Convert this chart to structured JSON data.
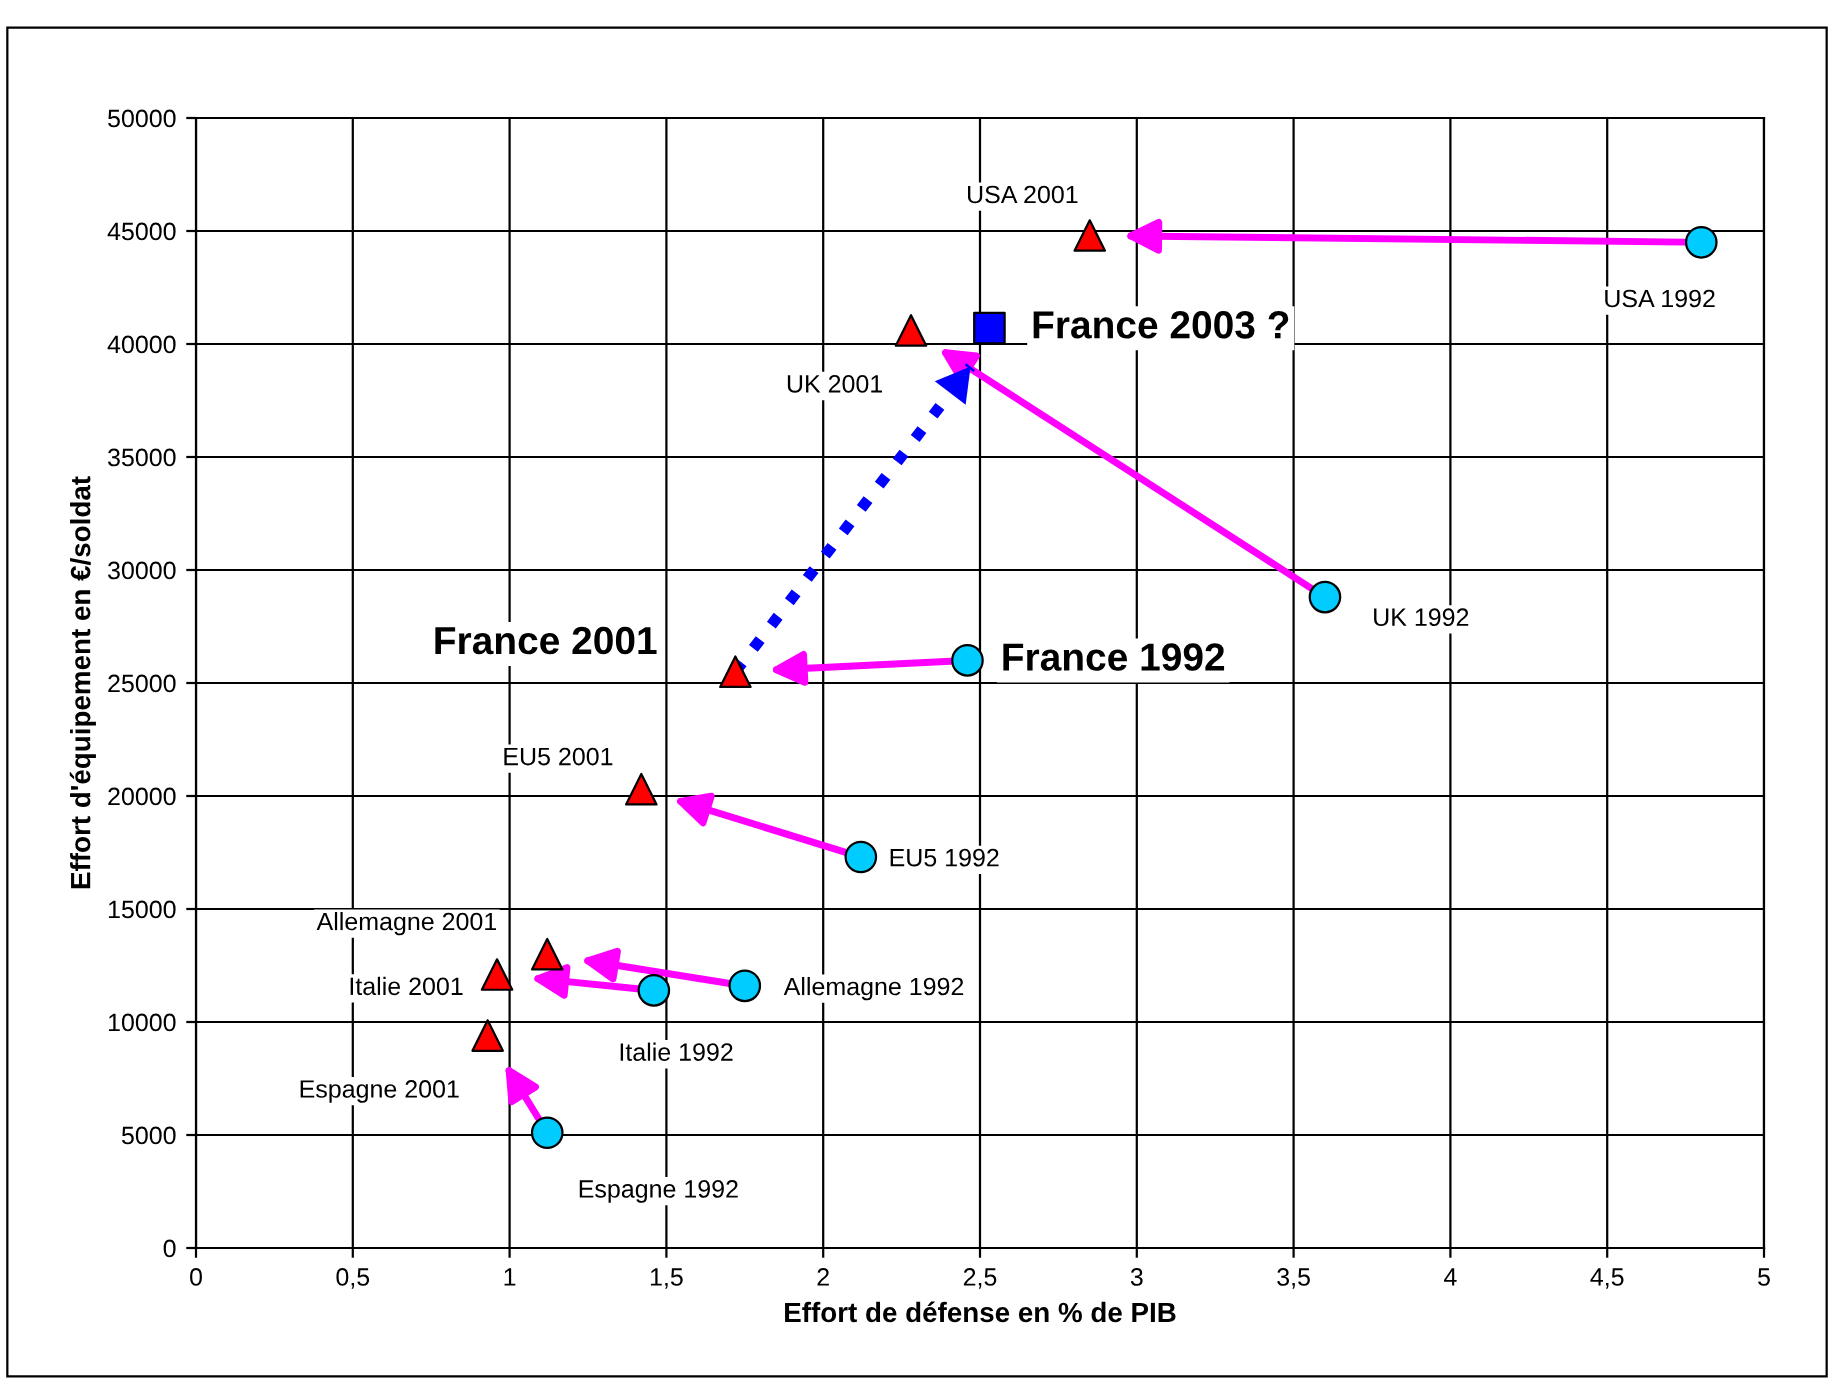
{
  "chart_data": {
    "type": "scatter",
    "xlabel": "Effort de défense en % de PIB",
    "ylabel": "Effort d'équipement en €/soldat",
    "xlim": [
      0,
      5
    ],
    "ylim": [
      0,
      50000
    ],
    "xticks": [
      0,
      {
        "value": 0.5,
        "label": "0,5"
      },
      1,
      {
        "value": 1.5,
        "label": "1,5"
      },
      2,
      {
        "value": 2.5,
        "label": "2,5"
      },
      3,
      {
        "value": 3.5,
        "label": "3,5"
      },
      4,
      {
        "value": 4.5,
        "label": "4,5"
      },
      5
    ],
    "yticks": [
      0,
      5000,
      10000,
      15000,
      20000,
      25000,
      30000,
      35000,
      40000,
      45000,
      50000
    ],
    "grid": true,
    "series": [
      {
        "type": "scatter",
        "color": "#00ccff",
        "marker": "circle",
        "x": [
          4.8,
          3.6,
          2.46,
          2.12,
          1.75,
          1.46,
          1.12
        ],
        "values": [
          44500,
          28800,
          26000,
          17300,
          11600,
          11400,
          5100
        ]
      },
      {
        "type": "scatter",
        "color": "#ff0000",
        "marker": "triangle",
        "x": [
          2.85,
          2.28,
          1.72,
          1.42,
          1.12,
          0.96,
          0.93
        ],
        "values": [
          44800,
          40600,
          25500,
          20300,
          13000,
          12100,
          9400
        ]
      },
      {
        "type": "scatter",
        "color": "#0000ff",
        "marker": "square",
        "x": [
          2.53
        ],
        "values": [
          40700
        ]
      },
      {
        "type": "line",
        "color": "#0000ff",
        "line_style": "dotted",
        "marker": "none",
        "x": [
          1.72,
          2.47
        ],
        "values": [
          25500,
          39000
        ]
      }
    ],
    "annotations": [
      {
        "text": "USA 2001",
        "x": 2.85,
        "y": 44800
      },
      {
        "text": "USA 1992",
        "x": 4.8,
        "y": 44500
      },
      {
        "text": "UK 2001",
        "x": 2.28,
        "y": 40600
      },
      {
        "text": "France 2003 ?",
        "x": 2.53,
        "y": 40700
      },
      {
        "text": "UK 1992",
        "x": 3.6,
        "y": 28800
      },
      {
        "text": "France 2001",
        "x": 1.72,
        "y": 25500
      },
      {
        "text": "France 1992",
        "x": 2.46,
        "y": 26000
      },
      {
        "text": "EU5 2001",
        "x": 1.42,
        "y": 20300
      },
      {
        "text": "EU5 1992",
        "x": 2.12,
        "y": 17300
      },
      {
        "text": "Allemagne 2001",
        "x": 1.12,
        "y": 13000
      },
      {
        "text": "Allemagne 1992",
        "x": 1.75,
        "y": 11600
      },
      {
        "text": "Italie 2001",
        "x": 0.96,
        "y": 12100
      },
      {
        "text": "Italie 1992",
        "x": 1.46,
        "y": 11400
      },
      {
        "text": "Espagne 2001",
        "x": 0.93,
        "y": 9400
      },
      {
        "text": "Espagne 1992",
        "x": 1.12,
        "y": 5100
      }
    ]
  }
}
